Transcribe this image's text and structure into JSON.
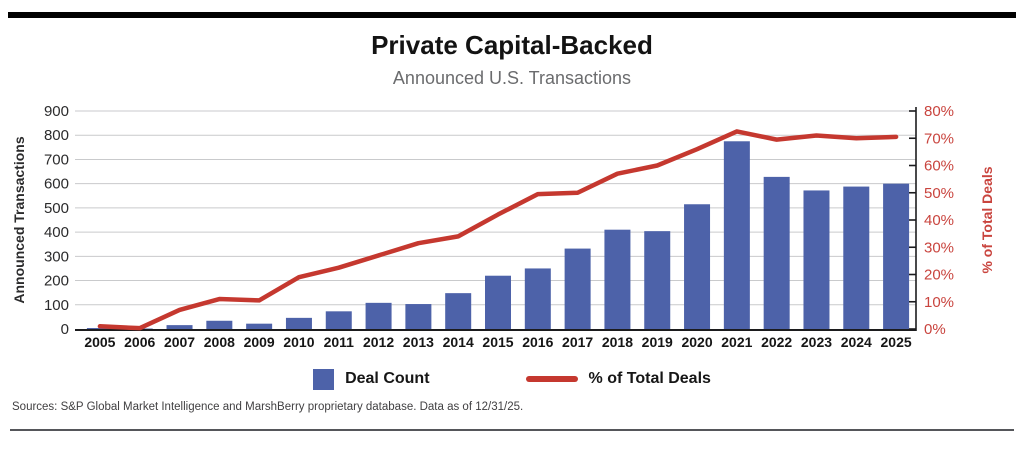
{
  "header": {
    "title": "Private Capital-Backed",
    "subtitle": "Announced U.S. Transactions"
  },
  "footer": {
    "sources": "Sources: S&P Global Market Intelligence and MarshBerry proprietary database. Data as of 12/31/25."
  },
  "colors": {
    "bar_blue": "#4d62a9",
    "line_red": "#c5382f",
    "right_axis_red": "#c9443e",
    "grid_gray": "#c9cacc",
    "axis_dark": "#1c1c1e",
    "tick_text": "#2b2b2c"
  },
  "chart_data": {
    "type": "bar",
    "title": "Private Capital-Backed",
    "subtitle": "Announced U.S. Transactions",
    "categories": [
      "2005",
      "2006",
      "2007",
      "2008",
      "2009",
      "2010",
      "2011",
      "2012",
      "2013",
      "2014",
      "2015",
      "2016",
      "2017",
      "2018",
      "2019",
      "2020",
      "2021",
      "2022",
      "2023",
      "2024",
      "2025"
    ],
    "series": [
      {
        "name": "Deal Count",
        "type": "bar",
        "axis": "left",
        "color": "#4d62a9",
        "values": [
          4,
          2,
          16,
          34,
          22,
          46,
          73,
          108,
          103,
          148,
          220,
          250,
          332,
          410,
          404,
          515,
          775,
          628,
          572,
          588,
          600
        ]
      },
      {
        "name": "% of Total Deals",
        "type": "line",
        "axis": "right",
        "color": "#c5382f",
        "values": [
          1,
          0.3,
          7,
          11,
          10.5,
          19,
          22.5,
          27,
          31.5,
          34,
          42,
          49.5,
          50,
          57,
          60,
          66,
          72.5,
          69.5,
          71,
          70,
          70.5
        ]
      }
    ],
    "left_axis": {
      "label": "Announced Transactions",
      "min": 0,
      "max": 900,
      "tick_step": 100
    },
    "right_axis": {
      "label": "% of Total Deals",
      "min": 0,
      "max": 80,
      "tick_step": 10,
      "suffix": "%"
    },
    "grid": true,
    "legend_position": "bottom"
  }
}
